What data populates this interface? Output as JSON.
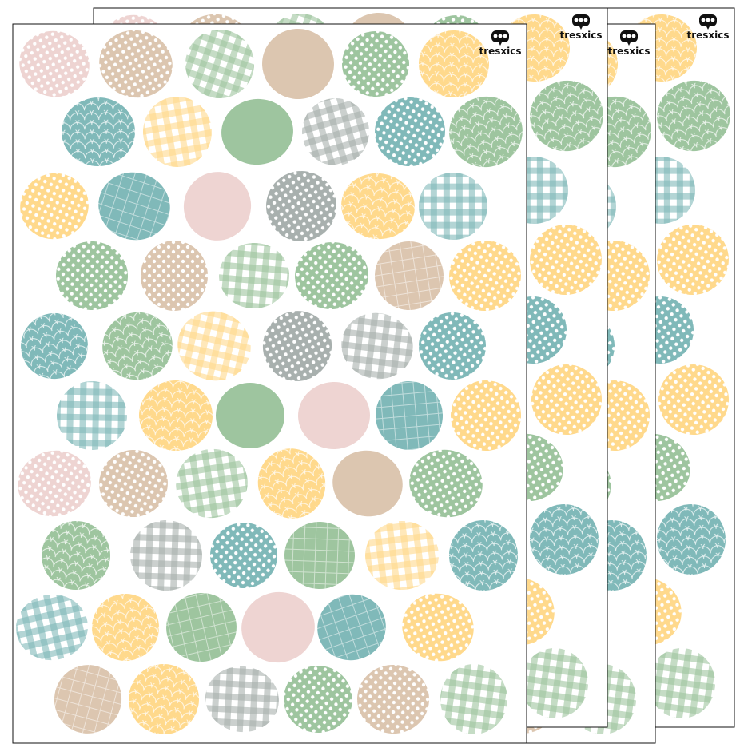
{
  "sheets": [
    {
      "logo": "tresxics"
    },
    {
      "logo": "tresxics"
    },
    {
      "logo": "tresxics"
    },
    {
      "logo": "tresxics"
    }
  ]
}
